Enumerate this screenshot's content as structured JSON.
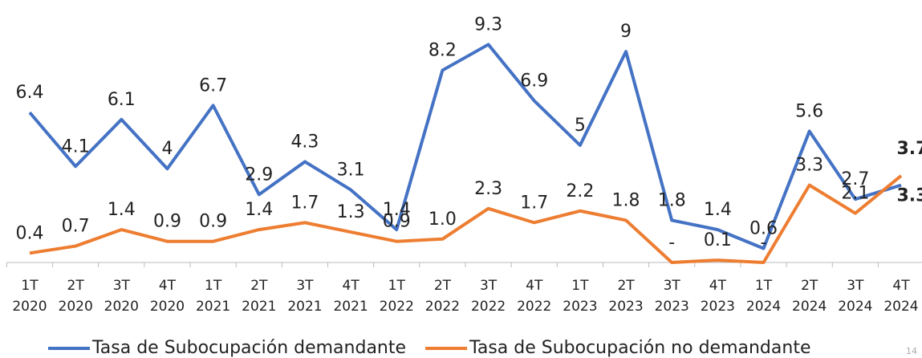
{
  "chart_data": {
    "type": "line",
    "categories": [
      [
        "1T",
        "2020"
      ],
      [
        "2T",
        "2020"
      ],
      [
        "3T",
        "2020"
      ],
      [
        "4T",
        "2020"
      ],
      [
        "1T",
        "2021"
      ],
      [
        "2T",
        "2021"
      ],
      [
        "3T",
        "2021"
      ],
      [
        "4T",
        "2021"
      ],
      [
        "1T",
        "2022"
      ],
      [
        "2T",
        "2022"
      ],
      [
        "3T",
        "2022"
      ],
      [
        "4T",
        "2022"
      ],
      [
        "1T",
        "2023"
      ],
      [
        "2T",
        "2023"
      ],
      [
        "3T",
        "2023"
      ],
      [
        "4T",
        "2023"
      ],
      [
        "1T",
        "2024"
      ],
      [
        "2T",
        "2024"
      ],
      [
        "3T",
        "2024"
      ],
      [
        "4T",
        "2024"
      ]
    ],
    "series": [
      {
        "name": "Tasa de Subocupación demandante",
        "color": "#4472c4",
        "values": [
          6.4,
          4.1,
          6.1,
          4.0,
          6.7,
          2.9,
          4.3,
          3.1,
          1.4,
          8.2,
          9.3,
          6.9,
          5.0,
          9.0,
          1.8,
          1.4,
          0.6,
          5.6,
          2.7,
          3.3
        ]
      },
      {
        "name": "Tasa de Subocupación no demandante",
        "color": "#ed7d31",
        "values": [
          0.4,
          0.7,
          1.4,
          0.9,
          0.9,
          1.4,
          1.7,
          1.3,
          0.9,
          1.0,
          2.3,
          1.7,
          2.2,
          1.8,
          0,
          0.1,
          0,
          3.3,
          2.1,
          3.7
        ],
        "value_labels": [
          "0.4",
          "0.7",
          "1.4",
          "0.9",
          "0.9",
          "1.4",
          "1.7",
          "1.3",
          "0.9",
          "1.0",
          "2.3",
          "1.7",
          "2.2",
          "1.8",
          "-",
          "0.1",
          "-",
          "3.3",
          "2.1",
          "3.7"
        ]
      }
    ],
    "ylim": [
      0,
      10
    ],
    "legend": "bottom",
    "page_number": "14"
  }
}
